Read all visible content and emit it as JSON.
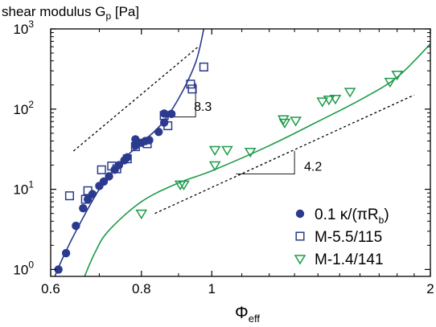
{
  "chart_data": {
    "type": "scatter",
    "title": "",
    "ylabel": {
      "main": "shear  modulus G",
      "sub": "p",
      "unit": " [Pa]"
    },
    "xlabel": {
      "main": "Φ",
      "sub": "eff"
    },
    "x_scale": "log",
    "y_scale": "log",
    "xlim": [
      0.6,
      2.0
    ],
    "ylim": [
      0.82,
      1000
    ],
    "x_ticks": [
      {
        "value": 0.6,
        "label": "0.6"
      },
      {
        "value": 0.8,
        "label": "0.8"
      },
      {
        "value": 1.0,
        "label": "1"
      },
      {
        "value": 2.0,
        "label": "2"
      }
    ],
    "x_minor_ticks": [
      0.7,
      0.9,
      1.1,
      1.2,
      1.3,
      1.4,
      1.5,
      1.6,
      1.7,
      1.8,
      1.9
    ],
    "y_ticks": [
      {
        "value": 1,
        "base": "10",
        "exp": "0"
      },
      {
        "value": 10,
        "base": "10",
        "exp": "1"
      },
      {
        "value": 100,
        "base": "10",
        "exp": "2"
      },
      {
        "value": 1000,
        "base": "10",
        "exp": "3"
      }
    ],
    "legend": {
      "position": "bottom-right",
      "entries": [
        {
          "marker": "filled-circle",
          "color": "#2b3a8f",
          "text_main": "0.1 κ/(πR",
          "text_sub": "b",
          "text_end": ")"
        },
        {
          "marker": "open-square",
          "color": "#2b3a8f",
          "text_main": "M-5.5/115",
          "text_sub": "",
          "text_end": ""
        },
        {
          "marker": "open-triangle-down",
          "color": "#1e9a4a",
          "text_main": "M-1.4/141",
          "text_sub": "",
          "text_end": ""
        }
      ]
    },
    "series": [
      {
        "name": "0.1 κ/(πR_b)",
        "marker": "filled-circle",
        "color": "#2b3a8f",
        "points": [
          [
            0.615,
            1.0
          ],
          [
            0.63,
            1.6
          ],
          [
            0.65,
            3.5
          ],
          [
            0.665,
            5.8
          ],
          [
            0.675,
            7.5
          ],
          [
            0.685,
            8.7
          ],
          [
            0.7,
            11.0
          ],
          [
            0.71,
            12.5
          ],
          [
            0.722,
            14.5
          ],
          [
            0.735,
            17.5
          ],
          [
            0.745,
            20.0
          ],
          [
            0.758,
            23.0
          ],
          [
            0.765,
            25.0
          ],
          [
            0.785,
            35.0
          ],
          [
            0.785,
            42.0
          ],
          [
            0.8,
            38.0
          ],
          [
            0.81,
            40.0
          ],
          [
            0.82,
            41.0
          ],
          [
            0.845,
            52.0
          ],
          [
            0.86,
            68.0
          ],
          [
            0.86,
            88.0
          ],
          [
            0.88,
            87.0
          ]
        ]
      },
      {
        "name": "M-5.5/115",
        "marker": "open-square",
        "color": "#2b3a8f",
        "points": [
          [
            0.637,
            8.3
          ],
          [
            0.67,
            7.5
          ],
          [
            0.675,
            9.6
          ],
          [
            0.705,
            17.5
          ],
          [
            0.728,
            19.5
          ],
          [
            0.74,
            18.0
          ],
          [
            0.765,
            24.0
          ],
          [
            0.785,
            34.0
          ],
          [
            0.815,
            37.0
          ],
          [
            0.86,
            83.0
          ],
          [
            0.87,
            62.0
          ],
          [
            0.935,
            205.0
          ],
          [
            0.94,
            178.0
          ],
          [
            0.975,
            335.0
          ]
        ]
      },
      {
        "name": "M-1.4/141",
        "marker": "open-triangle-down",
        "color": "#1e9a4a",
        "points": [
          [
            0.8,
            5.0
          ],
          [
            0.905,
            11.5
          ],
          [
            0.915,
            11.5
          ],
          [
            1.01,
            20.0
          ],
          [
            1.01,
            31.0
          ],
          [
            1.05,
            31.0
          ],
          [
            1.13,
            29.5
          ],
          [
            1.255,
            75.0
          ],
          [
            1.26,
            68.0
          ],
          [
            1.305,
            72.0
          ],
          [
            1.42,
            125.0
          ],
          [
            1.45,
            132.0
          ],
          [
            1.48,
            135.0
          ],
          [
            1.55,
            165.0
          ],
          [
            1.76,
            220.0
          ],
          [
            1.8,
            270.0
          ]
        ]
      }
    ],
    "fit_curves": [
      {
        "color": "#2b3a8f",
        "points": [
          [
            0.608,
            0.82
          ],
          [
            0.62,
            1.25
          ],
          [
            0.65,
            3.0
          ],
          [
            0.7,
            10.0
          ],
          [
            0.75,
            22.0
          ],
          [
            0.8,
            38.0
          ],
          [
            0.85,
            63.0
          ],
          [
            0.9,
            135.0
          ],
          [
            0.95,
            380.0
          ],
          [
            0.975,
            1000.0
          ]
        ]
      },
      {
        "color": "#1e9a4a",
        "points": [
          [
            0.668,
            0.82
          ],
          [
            0.69,
            1.6
          ],
          [
            0.72,
            3.0
          ],
          [
            0.8,
            7.0
          ],
          [
            0.9,
            12.0
          ],
          [
            1.0,
            17.0
          ],
          [
            1.2,
            35.0
          ],
          [
            1.4,
            70.0
          ],
          [
            1.6,
            130.0
          ],
          [
            1.8,
            250.0
          ],
          [
            2.0,
            650.0
          ]
        ]
      }
    ],
    "slope_guides": [
      {
        "label": "8.3",
        "line": [
          [
            0.645,
            30.0
          ],
          [
            0.958,
            600.0
          ]
        ],
        "triangle": [
          [
            0.855,
            80.0
          ],
          [
            0.95,
            80.0
          ],
          [
            0.95,
            210.0
          ]
        ],
        "label_at": [
          0.945,
          95.0
        ]
      },
      {
        "label": "4.2",
        "line": [
          [
            0.835,
            5.0
          ],
          [
            1.9,
            150.0
          ]
        ],
        "triangle": [
          [
            1.08,
            15.5
          ],
          [
            1.3,
            15.5
          ],
          [
            1.3,
            30.0
          ]
        ],
        "label_at": [
          1.34,
          17.0
        ]
      }
    ]
  }
}
